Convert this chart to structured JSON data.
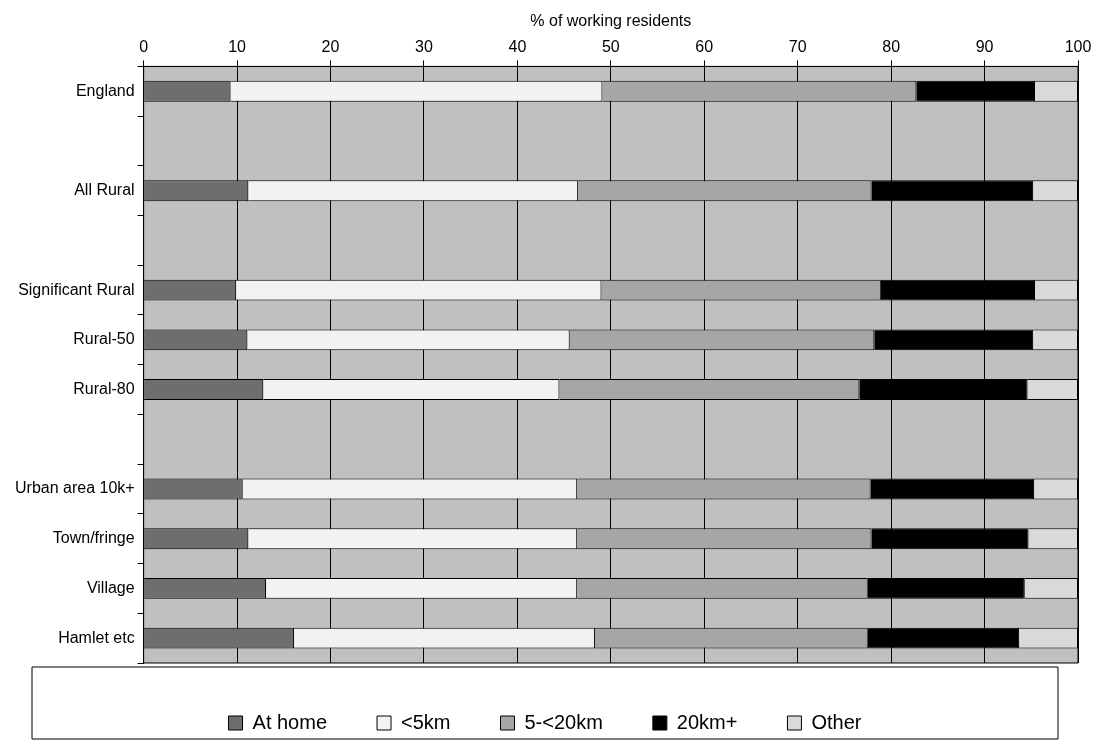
{
  "chart_data": {
    "type": "bar",
    "orientation": "horizontal",
    "stacked": true,
    "xlabel": "% of working residents",
    "categories": [
      "England",
      null,
      "All Rural",
      null,
      "Significant Rural",
      "Rural-50",
      "Rural-80",
      null,
      "Urban area 10k+",
      "Town/fringe",
      "Village",
      "Hamlet etc"
    ],
    "series": [
      {
        "name": "At home",
        "color": "#6e6e6e",
        "values": [
          9.3,
          null,
          11.2,
          null,
          9.9,
          11.1,
          12.8,
          null,
          10.6,
          11.2,
          13.1,
          16.1
        ]
      },
      {
        "name": "<5km",
        "color": "#f2f2f2",
        "values": [
          39.8,
          null,
          35.3,
          null,
          39.1,
          34.5,
          31.7,
          null,
          35.8,
          35.2,
          33.3,
          32.2
        ]
      },
      {
        "name": "5-<20km",
        "color": "#a6a6a6",
        "values": [
          33.6,
          null,
          31.4,
          null,
          29.9,
          32.6,
          32.1,
          null,
          31.4,
          31.5,
          31.1,
          29.2
        ]
      },
      {
        "name": "20km+",
        "color": "#000000",
        "values": [
          12.7,
          null,
          17.3,
          null,
          16.5,
          17.0,
          18.0,
          null,
          17.5,
          16.8,
          16.8,
          16.2
        ]
      },
      {
        "name": "Other",
        "color": "#d9d9d9",
        "values": [
          4.6,
          null,
          4.8,
          null,
          4.6,
          4.8,
          5.4,
          null,
          4.7,
          5.3,
          5.7,
          6.3
        ]
      }
    ],
    "xlim": [
      0,
      100
    ],
    "xticks": [
      0,
      10,
      20,
      30,
      40,
      50,
      60,
      70,
      80,
      90,
      100
    ],
    "grid": "x",
    "legend": "bottom"
  }
}
